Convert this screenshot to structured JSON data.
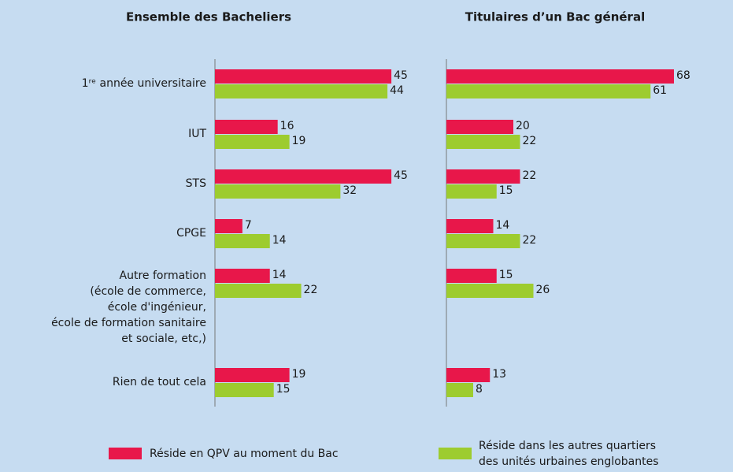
{
  "chart_data": [
    {
      "type": "hbar",
      "title": "Ensemble des Bacheliers",
      "categories": [
        "1ʳᵉ année universitaire",
        "IUT",
        "STS",
        "CPGE",
        "Autre formation\n(école de commerce,\nécole d'ingénieur,\nécole de formation sanitaire\net sociale, etc,)",
        "Rien de tout cela"
      ],
      "series": [
        {
          "name": "Réside en QPV au moment du Bac",
          "color": "#e8174a",
          "values": [
            45,
            16,
            45,
            7,
            14,
            19
          ]
        },
        {
          "name": "Réside dans les autres quartiers\ndes unités urbaines englobantes",
          "color": "#9dcc2f",
          "values": [
            44,
            19,
            32,
            14,
            22,
            15
          ]
        }
      ],
      "xlim": [
        0,
        50
      ]
    },
    {
      "type": "hbar",
      "title": "Titulaires d’un Bac général",
      "categories": [
        null,
        null,
        null,
        null,
        null,
        null
      ],
      "series": [
        {
          "color": "#e8174a",
          "values": [
            68,
            20,
            22,
            14,
            15,
            13
          ]
        },
        {
          "color": "#9dcc2f",
          "values": [
            61,
            22,
            15,
            22,
            26,
            8
          ]
        }
      ],
      "xlim": [
        0,
        80
      ]
    }
  ]
}
